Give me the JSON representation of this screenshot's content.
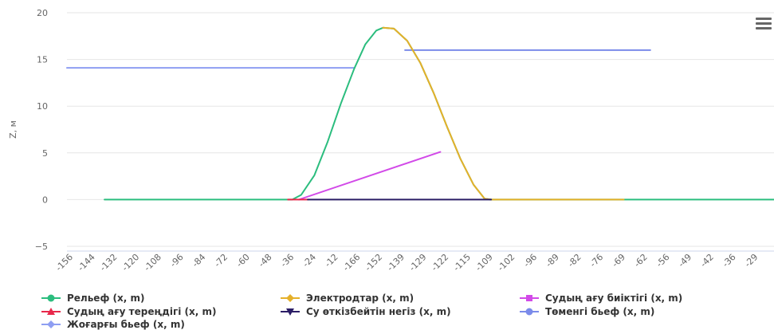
{
  "chart_data": {
    "type": "line",
    "ylabel": "Z, м",
    "xlabel": "",
    "ylim": [
      -5,
      20
    ],
    "y_ticks": [
      "−5",
      "0",
      "5",
      "10",
      "15",
      "20"
    ],
    "y_tick_values": [
      -5,
      0,
      5,
      10,
      15,
      20
    ],
    "x_ticks": [
      "-156",
      "-144",
      "-132",
      "-120",
      "-108",
      "-96",
      "-84",
      "-72",
      "-60",
      "-48",
      "-36",
      "-24",
      "-12",
      "-166",
      "-152",
      "-139",
      "-129",
      "-122",
      "-115",
      "-109",
      "-102",
      "-96",
      "-89",
      "-82",
      "-76",
      "-69",
      "-62",
      "-56",
      "-49",
      "-42",
      "-36",
      "-29"
    ],
    "x_range": [
      0,
      32
    ],
    "grid": true,
    "legend_position": "bottom",
    "series": [
      {
        "name": "Рельеф (x, m)",
        "color": "#2bbd7e",
        "marker": "circle",
        "points": [
          [
            1.7,
            0
          ],
          [
            10.2,
            0
          ],
          [
            10.6,
            0.5
          ],
          [
            11.2,
            2.6
          ],
          [
            11.8,
            6.2
          ],
          [
            12.4,
            10.3
          ],
          [
            13.0,
            14.0
          ],
          [
            13.5,
            16.6
          ],
          [
            14.0,
            18.1
          ],
          [
            14.3,
            18.4
          ],
          [
            14.8,
            18.3
          ],
          [
            15.4,
            17.0
          ],
          [
            16.0,
            14.6
          ],
          [
            16.6,
            11.4
          ],
          [
            17.2,
            7.8
          ],
          [
            17.8,
            4.4
          ],
          [
            18.4,
            1.6
          ],
          [
            18.9,
            0.1
          ],
          [
            19.2,
            0
          ],
          [
            32,
            0
          ]
        ]
      },
      {
        "name": "Электродтар (x, m)",
        "color": "#e5b02a",
        "marker": "diamond",
        "points": [
          [
            14.3,
            18.4
          ],
          [
            14.8,
            18.3
          ],
          [
            15.4,
            17.0
          ],
          [
            16.0,
            14.6
          ],
          [
            16.6,
            11.4
          ],
          [
            17.2,
            7.8
          ],
          [
            17.8,
            4.4
          ],
          [
            18.4,
            1.6
          ],
          [
            18.9,
            0.1
          ],
          [
            19.2,
            0
          ],
          [
            25.2,
            0
          ]
        ]
      },
      {
        "name": "Судың ағу биіктігі (x, m)",
        "color": "#d24ae8",
        "marker": "square",
        "points": [
          [
            10.5,
            0
          ],
          [
            16.9,
            5.1
          ]
        ]
      },
      {
        "name": "Судың ағу тереңдігі (x, m)",
        "color": "#e8294b",
        "marker": "triangle",
        "points": [
          [
            10.0,
            0
          ],
          [
            10.9,
            0
          ]
        ]
      },
      {
        "name": "Су өткізбейтін негіз (x, m)",
        "color": "#2b1d66",
        "marker": "triangle-down",
        "points": [
          [
            10.9,
            0
          ],
          [
            19.2,
            0
          ]
        ]
      },
      {
        "name": "Төменгі бьеф (x, m)",
        "color": "#7b8bea",
        "marker": "circle",
        "points": [
          [
            15.3,
            16
          ],
          [
            26.4,
            16
          ]
        ]
      },
      {
        "name": "Жоғарғы бьеф (x, m)",
        "color": "#8e9ef2",
        "marker": "diamond",
        "points": [
          [
            0,
            14.1
          ],
          [
            13.0,
            14.1
          ]
        ]
      }
    ]
  },
  "menu": {
    "icon": "hamburger-menu-icon"
  }
}
